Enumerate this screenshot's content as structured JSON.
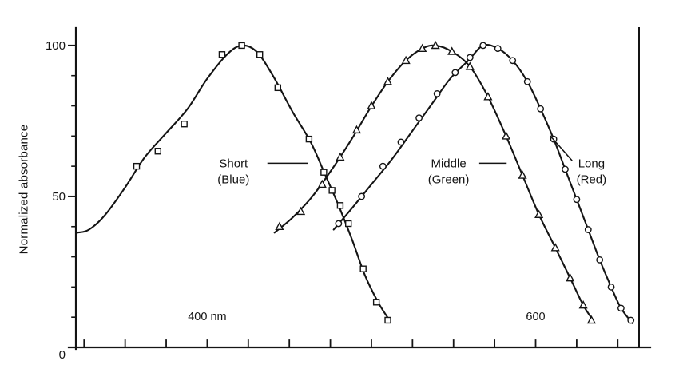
{
  "figure": {
    "background": "#ffffff",
    "ink": "#141414"
  },
  "chart_data": {
    "type": "line",
    "title": "",
    "xlabel": "",
    "ylabel": "Normalized absorbance",
    "x_unit": "nm",
    "xlim": [
      320,
      663
    ],
    "ylim": [
      0,
      105
    ],
    "grid": false,
    "legend_position": "inline-annotations",
    "y_ticks": {
      "minor_step": 10,
      "major": [
        {
          "value": 0,
          "label": "0",
          "dy": 14
        },
        {
          "value": 50,
          "label": "50",
          "dy": 5
        },
        {
          "value": 100,
          "label": "100",
          "dy": 5
        }
      ]
    },
    "x_ticks": {
      "start": 325,
      "end": 650,
      "step": 25
    },
    "x_axis_text_labels": [
      {
        "x": 400,
        "text": "400 nm"
      },
      {
        "x": 600,
        "text": "600"
      }
    ],
    "series": [
      {
        "name": "Short (Blue)",
        "marker": "square",
        "peak_nm": 421,
        "curve": [
          [
            321,
            38
          ],
          [
            328,
            39
          ],
          [
            338,
            44
          ],
          [
            350,
            53
          ],
          [
            362,
            63
          ],
          [
            375,
            71
          ],
          [
            388,
            79
          ],
          [
            400,
            89
          ],
          [
            412,
            97
          ],
          [
            421,
            100
          ],
          [
            430,
            98
          ],
          [
            440,
            90
          ],
          [
            452,
            78
          ],
          [
            463,
            68
          ],
          [
            472,
            57
          ],
          [
            480,
            47
          ],
          [
            488,
            36
          ],
          [
            496,
            24
          ],
          [
            504,
            15
          ],
          [
            511,
            9
          ]
        ],
        "points": [
          [
            357,
            60
          ],
          [
            370,
            65
          ],
          [
            386,
            74
          ],
          [
            409,
            97
          ],
          [
            421,
            100
          ],
          [
            432,
            97
          ],
          [
            443,
            86
          ],
          [
            462,
            69
          ],
          [
            471,
            58
          ],
          [
            476,
            52
          ],
          [
            481,
            47
          ],
          [
            486,
            41
          ],
          [
            495,
            26
          ],
          [
            503,
            15
          ],
          [
            510,
            9
          ]
        ]
      },
      {
        "name": "Middle (Green)",
        "marker": "triangle",
        "peak_nm": 538,
        "curve": [
          [
            441,
            38
          ],
          [
            452,
            43
          ],
          [
            464,
            50
          ],
          [
            476,
            59
          ],
          [
            488,
            69
          ],
          [
            499,
            79
          ],
          [
            510,
            88
          ],
          [
            521,
            95
          ],
          [
            531,
            99
          ],
          [
            539,
            100
          ],
          [
            549,
            98
          ],
          [
            560,
            93
          ],
          [
            571,
            83
          ],
          [
            582,
            70
          ],
          [
            592,
            57
          ],
          [
            602,
            44
          ],
          [
            612,
            33
          ],
          [
            621,
            23
          ],
          [
            629,
            14
          ],
          [
            635,
            9
          ]
        ],
        "points": [
          [
            444,
            40
          ],
          [
            457,
            45
          ],
          [
            470,
            54
          ],
          [
            481,
            63
          ],
          [
            491,
            72
          ],
          [
            500,
            80
          ],
          [
            510,
            88
          ],
          [
            521,
            95
          ],
          [
            531,
            99
          ],
          [
            539,
            100
          ],
          [
            549,
            98
          ],
          [
            560,
            93
          ],
          [
            571,
            83
          ],
          [
            582,
            70
          ],
          [
            592,
            57
          ],
          [
            602,
            44
          ],
          [
            612,
            33
          ],
          [
            621,
            23
          ],
          [
            629,
            14
          ],
          [
            634,
            9
          ]
        ]
      },
      {
        "name": "Long (Red)",
        "marker": "circle",
        "peak_nm": 568,
        "curve": [
          [
            477,
            39
          ],
          [
            488,
            46
          ],
          [
            500,
            54
          ],
          [
            512,
            62
          ],
          [
            524,
            71
          ],
          [
            536,
            80
          ],
          [
            548,
            89
          ],
          [
            559,
            95
          ],
          [
            568,
            100
          ],
          [
            577,
            99
          ],
          [
            586,
            95
          ],
          [
            595,
            88
          ],
          [
            603,
            79
          ],
          [
            611,
            69
          ],
          [
            618,
            59
          ],
          [
            625,
            49
          ],
          [
            632,
            39
          ],
          [
            639,
            29
          ],
          [
            646,
            20
          ],
          [
            652,
            13
          ],
          [
            659,
            8
          ]
        ],
        "points": [
          [
            480,
            41
          ],
          [
            494,
            50
          ],
          [
            507,
            60
          ],
          [
            518,
            68
          ],
          [
            529,
            76
          ],
          [
            540,
            84
          ],
          [
            551,
            91
          ],
          [
            560,
            96
          ],
          [
            568,
            100
          ],
          [
            577,
            99
          ],
          [
            586,
            95
          ],
          [
            595,
            88
          ],
          [
            603,
            79
          ],
          [
            611,
            69
          ],
          [
            618,
            59
          ],
          [
            625,
            49
          ],
          [
            632,
            39
          ],
          [
            639,
            29
          ],
          [
            646,
            20
          ],
          [
            652,
            13
          ],
          [
            658,
            9
          ]
        ]
      }
    ],
    "annotations": [
      {
        "id": "short-blue",
        "lines": [
          "Short",
          "(Blue)"
        ],
        "x": 416,
        "y": 61,
        "leader": [
          [
            437,
            61
          ],
          [
            461,
            61
          ]
        ]
      },
      {
        "id": "middle-green",
        "lines": [
          "Middle",
          "(Green)"
        ],
        "x": 547,
        "y": 61,
        "leader": [
          [
            566,
            61
          ],
          [
            582,
            61
          ]
        ]
      },
      {
        "id": "long-red",
        "lines": [
          "Long",
          "(Red)"
        ],
        "x": 634,
        "y": 61,
        "leader": [
          [
            622,
            62
          ],
          [
            609,
            70
          ]
        ]
      }
    ]
  }
}
